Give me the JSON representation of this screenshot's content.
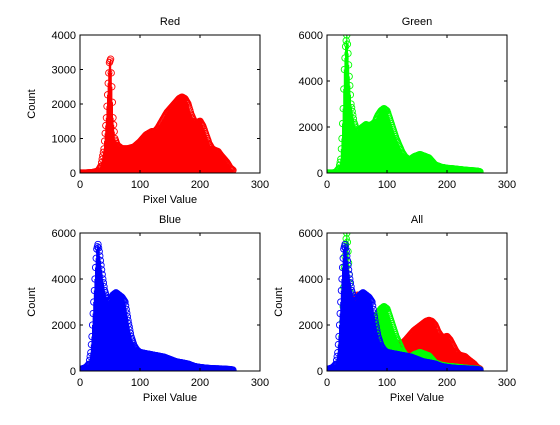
{
  "chart_data": [
    {
      "type": "scatter",
      "title": "Red",
      "xlabel": "Pixel Value",
      "ylabel": "Count",
      "xlim": [
        0,
        300
      ],
      "ylim": [
        0,
        4000
      ],
      "xticks": [
        0,
        100,
        200,
        300
      ],
      "yticks": [
        0,
        1000,
        2000,
        3000,
        4000
      ],
      "grid": false,
      "series": [
        {
          "color": "#ff0000",
          "marker": "circle",
          "stem": true,
          "profile": [
            [
              0,
              0
            ],
            [
              10,
              0
            ],
            [
              20,
              10
            ],
            [
              30,
              50
            ],
            [
              35,
              200
            ],
            [
              40,
              700
            ],
            [
              44,
              1600
            ],
            [
              47,
              2600
            ],
            [
              49,
              3200
            ],
            [
              51,
              3300
            ],
            [
              53,
              2500
            ],
            [
              55,
              1600
            ],
            [
              58,
              1000
            ],
            [
              62,
              800
            ],
            [
              70,
              700
            ],
            [
              80,
              700
            ],
            [
              90,
              750
            ],
            [
              100,
              900
            ],
            [
              110,
              1100
            ],
            [
              115,
              1150
            ],
            [
              120,
              1200
            ],
            [
              125,
              1200
            ],
            [
              130,
              1300
            ],
            [
              135,
              1450
            ],
            [
              140,
              1600
            ],
            [
              145,
              1750
            ],
            [
              150,
              1850
            ],
            [
              155,
              1950
            ],
            [
              160,
              2050
            ],
            [
              165,
              2150
            ],
            [
              170,
              2200
            ],
            [
              175,
              2150
            ],
            [
              180,
              2000
            ],
            [
              185,
              1700
            ],
            [
              190,
              1500
            ],
            [
              195,
              1450
            ],
            [
              200,
              1500
            ],
            [
              205,
              1350
            ],
            [
              210,
              1100
            ],
            [
              215,
              850
            ],
            [
              220,
              700
            ],
            [
              225,
              650
            ],
            [
              230,
              620
            ],
            [
              235,
              500
            ],
            [
              240,
              400
            ],
            [
              245,
              300
            ],
            [
              250,
              150
            ],
            [
              255,
              80
            ]
          ]
        }
      ]
    },
    {
      "type": "scatter",
      "title": "Green",
      "xlabel": "",
      "ylabel": "",
      "xlim": [
        0,
        300
      ],
      "ylim": [
        0,
        6000
      ],
      "xticks": [
        0,
        100,
        200,
        300
      ],
      "yticks": [
        0,
        2000,
        4000,
        6000
      ],
      "grid": false,
      "series": [
        {
          "color": "#00ff00",
          "marker": "circle",
          "stem": true,
          "profile": [
            [
              0,
              0
            ],
            [
              10,
              0
            ],
            [
              15,
              30
            ],
            [
              20,
              200
            ],
            [
              23,
              600
            ],
            [
              25,
              1500
            ],
            [
              27,
              2800
            ],
            [
              29,
              4500
            ],
            [
              31,
              5500
            ],
            [
              33,
              6000
            ],
            [
              35,
              5200
            ],
            [
              37,
              4200
            ],
            [
              40,
              3000
            ],
            [
              45,
              2200
            ],
            [
              50,
              1800
            ],
            [
              55,
              1900
            ],
            [
              60,
              2000
            ],
            [
              65,
              2100
            ],
            [
              70,
              2050
            ],
            [
              75,
              2100
            ],
            [
              80,
              2200
            ],
            [
              85,
              2500
            ],
            [
              90,
              2700
            ],
            [
              95,
              2800
            ],
            [
              100,
              2700
            ],
            [
              105,
              2300
            ],
            [
              110,
              1900
            ],
            [
              115,
              1500
            ],
            [
              120,
              1200
            ],
            [
              125,
              900
            ],
            [
              130,
              700
            ],
            [
              135,
              600
            ],
            [
              140,
              600
            ],
            [
              145,
              700
            ],
            [
              150,
              750
            ],
            [
              155,
              800
            ],
            [
              160,
              750
            ],
            [
              165,
              700
            ],
            [
              170,
              650
            ],
            [
              175,
              500
            ],
            [
              180,
              350
            ],
            [
              190,
              250
            ],
            [
              200,
              200
            ],
            [
              210,
              180
            ],
            [
              220,
              150
            ],
            [
              230,
              120
            ],
            [
              240,
              100
            ],
            [
              250,
              80
            ],
            [
              255,
              50
            ]
          ]
        }
      ]
    },
    {
      "type": "scatter",
      "title": "Blue",
      "xlabel": "Pixel Value",
      "ylabel": "Count",
      "xlim": [
        0,
        300
      ],
      "ylim": [
        0,
        6000
      ],
      "xticks": [
        0,
        100,
        200,
        300
      ],
      "yticks": [
        0,
        2000,
        4000,
        6000
      ],
      "grid": false,
      "series": [
        {
          "color": "#0000ff",
          "marker": "circle",
          "stem": true,
          "profile": [
            [
              0,
              50
            ],
            [
              5,
              100
            ],
            [
              10,
              150
            ],
            [
              15,
              300
            ],
            [
              18,
              800
            ],
            [
              20,
              1500
            ],
            [
              22,
              2500
            ],
            [
              24,
              3500
            ],
            [
              26,
              4500
            ],
            [
              28,
              5300
            ],
            [
              30,
              5500
            ],
            [
              32,
              5200
            ],
            [
              35,
              4600
            ],
            [
              38,
              4000
            ],
            [
              41,
              3500
            ],
            [
              44,
              3200
            ],
            [
              47,
              3000
            ],
            [
              50,
              3100
            ],
            [
              55,
              3300
            ],
            [
              60,
              3400
            ],
            [
              65,
              3300
            ],
            [
              70,
              3200
            ],
            [
              75,
              3000
            ],
            [
              80,
              2200
            ],
            [
              85,
              1500
            ],
            [
              90,
              1100
            ],
            [
              95,
              900
            ],
            [
              100,
              800
            ],
            [
              110,
              750
            ],
            [
              120,
              700
            ],
            [
              130,
              650
            ],
            [
              140,
              600
            ],
            [
              150,
              500
            ],
            [
              160,
              400
            ],
            [
              170,
              350
            ],
            [
              180,
              300
            ],
            [
              190,
              200
            ],
            [
              200,
              150
            ],
            [
              210,
              120
            ],
            [
              220,
              100
            ],
            [
              230,
              90
            ],
            [
              240,
              80
            ],
            [
              250,
              60
            ],
            [
              255,
              40
            ]
          ]
        }
      ]
    },
    {
      "type": "scatter",
      "title": "All",
      "xlabel": "Pixel Value",
      "ylabel": "Count",
      "xlim": [
        0,
        300
      ],
      "ylim": [
        0,
        6000
      ],
      "xticks": [
        0,
        100,
        200,
        300
      ],
      "yticks": [
        0,
        2000,
        4000,
        6000
      ],
      "grid": false,
      "series": [
        {
          "color": "#ff0000",
          "marker": "circle",
          "stem": true,
          "same_as": 0
        },
        {
          "color": "#00ff00",
          "marker": "circle",
          "stem": true,
          "same_as": 1
        },
        {
          "color": "#0000ff",
          "marker": "circle",
          "stem": true,
          "same_as": 2
        }
      ]
    }
  ]
}
